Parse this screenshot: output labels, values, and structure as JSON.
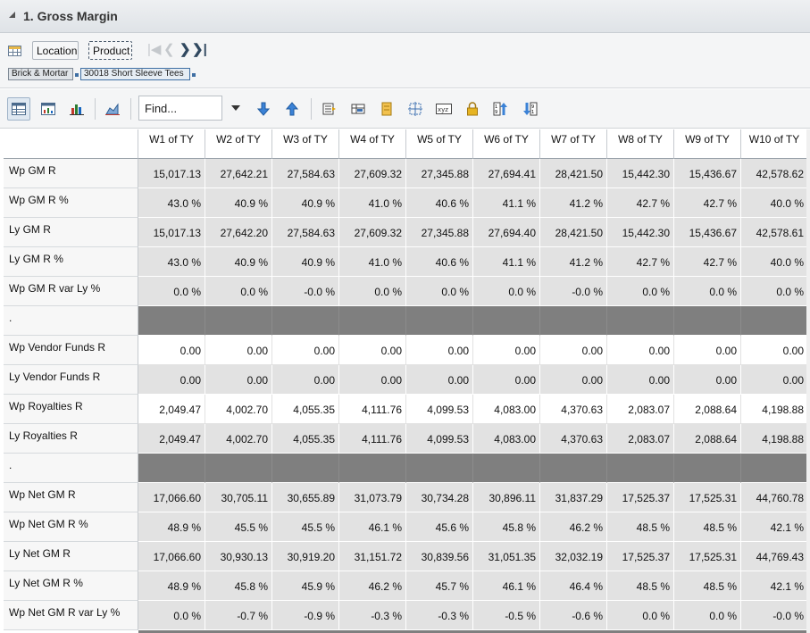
{
  "panel": {
    "title": "1. Gross Margin"
  },
  "selector": {
    "location_label": "Location",
    "product_label": "Product",
    "breadcrumb": [
      "Brick & Mortar",
      "30018 Short Sleeve Tees"
    ]
  },
  "toolbar": {
    "find_placeholder": "Find..."
  },
  "grid": {
    "columns": [
      "W1 of TY",
      "W2 of TY",
      "W3 of TY",
      "W4 of TY",
      "W5 of TY",
      "W6 of TY",
      "W7 of TY",
      "W8 of TY",
      "W9 of TY",
      "W10 of TY"
    ],
    "rows": [
      {
        "label": "Wp GM R",
        "style": "gray",
        "values": [
          "15,017.13",
          "27,642.21",
          "27,584.63",
          "27,609.32",
          "27,345.88",
          "27,694.41",
          "28,421.50",
          "15,442.30",
          "15,436.67",
          "42,578.62"
        ]
      },
      {
        "label": "Wp GM R %",
        "style": "gray",
        "values": [
          "43.0 %",
          "40.9 %",
          "40.9 %",
          "41.0 %",
          "40.6 %",
          "41.1 %",
          "41.2 %",
          "42.7 %",
          "42.7 %",
          "40.0 %"
        ]
      },
      {
        "label": "Ly GM R",
        "style": "gray",
        "values": [
          "15,017.13",
          "27,642.20",
          "27,584.63",
          "27,609.32",
          "27,345.88",
          "27,694.40",
          "28,421.50",
          "15,442.30",
          "15,436.67",
          "42,578.61"
        ]
      },
      {
        "label": "Ly GM R %",
        "style": "gray",
        "values": [
          "43.0 %",
          "40.9 %",
          "40.9 %",
          "41.0 %",
          "40.6 %",
          "41.1 %",
          "41.2 %",
          "42.7 %",
          "42.7 %",
          "40.0 %"
        ]
      },
      {
        "label": "Wp GM R var Ly %",
        "style": "gray",
        "values": [
          "0.0 %",
          "0.0 %",
          "-0.0 %",
          "0.0 %",
          "0.0 %",
          "0.0 %",
          "-0.0 %",
          "0.0 %",
          "0.0 %",
          "0.0 %"
        ]
      },
      {
        "label": ".",
        "style": "sep",
        "values": [
          "",
          "",
          "",
          "",
          "",
          "",
          "",
          "",
          "",
          ""
        ]
      },
      {
        "label": "Wp Vendor Funds R",
        "style": "white",
        "values": [
          "0.00",
          "0.00",
          "0.00",
          "0.00",
          "0.00",
          "0.00",
          "0.00",
          "0.00",
          "0.00",
          "0.00"
        ]
      },
      {
        "label": "Ly Vendor Funds R",
        "style": "gray",
        "values": [
          "0.00",
          "0.00",
          "0.00",
          "0.00",
          "0.00",
          "0.00",
          "0.00",
          "0.00",
          "0.00",
          "0.00"
        ]
      },
      {
        "label": "Wp Royalties R",
        "style": "white",
        "values": [
          "2,049.47",
          "4,002.70",
          "4,055.35",
          "4,111.76",
          "4,099.53",
          "4,083.00",
          "4,370.63",
          "2,083.07",
          "2,088.64",
          "4,198.88"
        ]
      },
      {
        "label": "Ly Royalties R",
        "style": "gray",
        "values": [
          "2,049.47",
          "4,002.70",
          "4,055.35",
          "4,111.76",
          "4,099.53",
          "4,083.00",
          "4,370.63",
          "2,083.07",
          "2,088.64",
          "4,198.88"
        ]
      },
      {
        "label": ".",
        "style": "sep",
        "values": [
          "",
          "",
          "",
          "",
          "",
          "",
          "",
          "",
          "",
          ""
        ]
      },
      {
        "label": "Wp Net GM R",
        "style": "gray",
        "values": [
          "17,066.60",
          "30,705.11",
          "30,655.89",
          "31,073.79",
          "30,734.28",
          "30,896.11",
          "31,837.29",
          "17,525.37",
          "17,525.31",
          "44,760.78"
        ]
      },
      {
        "label": "Wp Net GM R %",
        "style": "gray",
        "values": [
          "48.9 %",
          "45.5 %",
          "45.5 %",
          "46.1 %",
          "45.6 %",
          "45.8 %",
          "46.2 %",
          "48.5 %",
          "48.5 %",
          "42.1 %"
        ]
      },
      {
        "label": "Ly Net GM R",
        "style": "gray",
        "values": [
          "17,066.60",
          "30,930.13",
          "30,919.20",
          "31,151.72",
          "30,839.56",
          "31,051.35",
          "32,032.19",
          "17,525.37",
          "17,525.31",
          "44,769.43"
        ]
      },
      {
        "label": "Ly Net GM R %",
        "style": "gray",
        "values": [
          "48.9 %",
          "45.8 %",
          "45.9 %",
          "46.2 %",
          "45.7 %",
          "46.1 %",
          "46.4 %",
          "48.5 %",
          "48.5 %",
          "42.1 %"
        ]
      },
      {
        "label": "Wp Net GM R var Ly %",
        "style": "gray",
        "values": [
          "0.0 %",
          "-0.7 %",
          "-0.9 %",
          "-0.3 %",
          "-0.3 %",
          "-0.5 %",
          "-0.6 %",
          "0.0 %",
          "0.0 %",
          "-0.0 %"
        ]
      }
    ]
  }
}
